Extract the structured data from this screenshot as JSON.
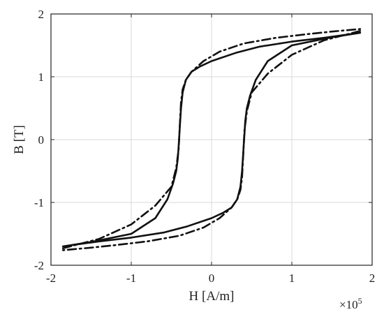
{
  "chart_data": {
    "type": "line",
    "title": "",
    "xlabel": "H [A/m]",
    "ylabel": "B [T]",
    "x_multiplier_label": "×10",
    "x_multiplier_exponent": "5",
    "xlim": [
      -2,
      2
    ],
    "ylim": [
      -2,
      2
    ],
    "xticks": [
      -2,
      -1,
      0,
      1,
      2
    ],
    "yticks": [
      -2,
      -1,
      0,
      1,
      2
    ],
    "grid": true,
    "legend": "none",
    "series": [
      {
        "style": "solid",
        "color": "#111111",
        "x": [
          -1.85,
          -1.5,
          -1.0,
          -0.7,
          -0.55,
          -0.48,
          -0.44,
          -0.42,
          -0.41,
          -0.4,
          -0.39,
          -0.38,
          -0.36,
          -0.32,
          -0.25,
          -0.15,
          0.0,
          0.3,
          0.6,
          1.0,
          1.4,
          1.85
        ],
        "y": [
          -1.7,
          -1.63,
          -1.5,
          -1.25,
          -0.95,
          -0.7,
          -0.5,
          -0.3,
          -0.1,
          0.1,
          0.3,
          0.5,
          0.75,
          0.95,
          1.08,
          1.16,
          1.25,
          1.38,
          1.48,
          1.56,
          1.62,
          1.7
        ]
      },
      {
        "style": "solid",
        "color": "#111111",
        "x": [
          1.85,
          1.5,
          1.0,
          0.7,
          0.55,
          0.48,
          0.44,
          0.42,
          0.41,
          0.4,
          0.39,
          0.38,
          0.36,
          0.32,
          0.25,
          0.15,
          0.0,
          -0.3,
          -0.6,
          -1.0,
          -1.4,
          -1.85
        ],
        "y": [
          1.7,
          1.63,
          1.5,
          1.25,
          0.95,
          0.7,
          0.5,
          0.3,
          0.1,
          -0.1,
          -0.3,
          -0.5,
          -0.75,
          -0.95,
          -1.08,
          -1.16,
          -1.25,
          -1.38,
          -1.48,
          -1.56,
          -1.62,
          -1.7
        ]
      },
      {
        "style": "dashdot",
        "color": "#111111",
        "x": [
          -1.85,
          -1.4,
          -1.0,
          -0.7,
          -0.5,
          -0.44,
          -0.41,
          -0.4,
          -0.39,
          -0.38,
          -0.36,
          -0.32,
          -0.25,
          -0.1,
          0.1,
          0.4,
          0.8,
          1.2,
          1.5,
          1.85
        ],
        "y": [
          -1.73,
          -1.58,
          -1.35,
          -1.05,
          -0.75,
          -0.45,
          -0.15,
          0.1,
          0.35,
          0.6,
          0.8,
          0.95,
          1.08,
          1.25,
          1.4,
          1.53,
          1.62,
          1.68,
          1.72,
          1.76
        ]
      },
      {
        "style": "dashdot",
        "color": "#111111",
        "x": [
          1.85,
          1.4,
          1.0,
          0.7,
          0.5,
          0.44,
          0.41,
          0.4,
          0.39,
          0.38,
          0.36,
          0.32,
          0.25,
          0.1,
          -0.1,
          -0.4,
          -0.8,
          -1.2,
          -1.5,
          -1.85
        ],
        "y": [
          1.73,
          1.58,
          1.35,
          1.05,
          0.75,
          0.45,
          0.15,
          -0.1,
          -0.35,
          -0.6,
          -0.8,
          -0.95,
          -1.08,
          -1.25,
          -1.4,
          -1.53,
          -1.62,
          -1.68,
          -1.72,
          -1.76
        ]
      }
    ]
  }
}
